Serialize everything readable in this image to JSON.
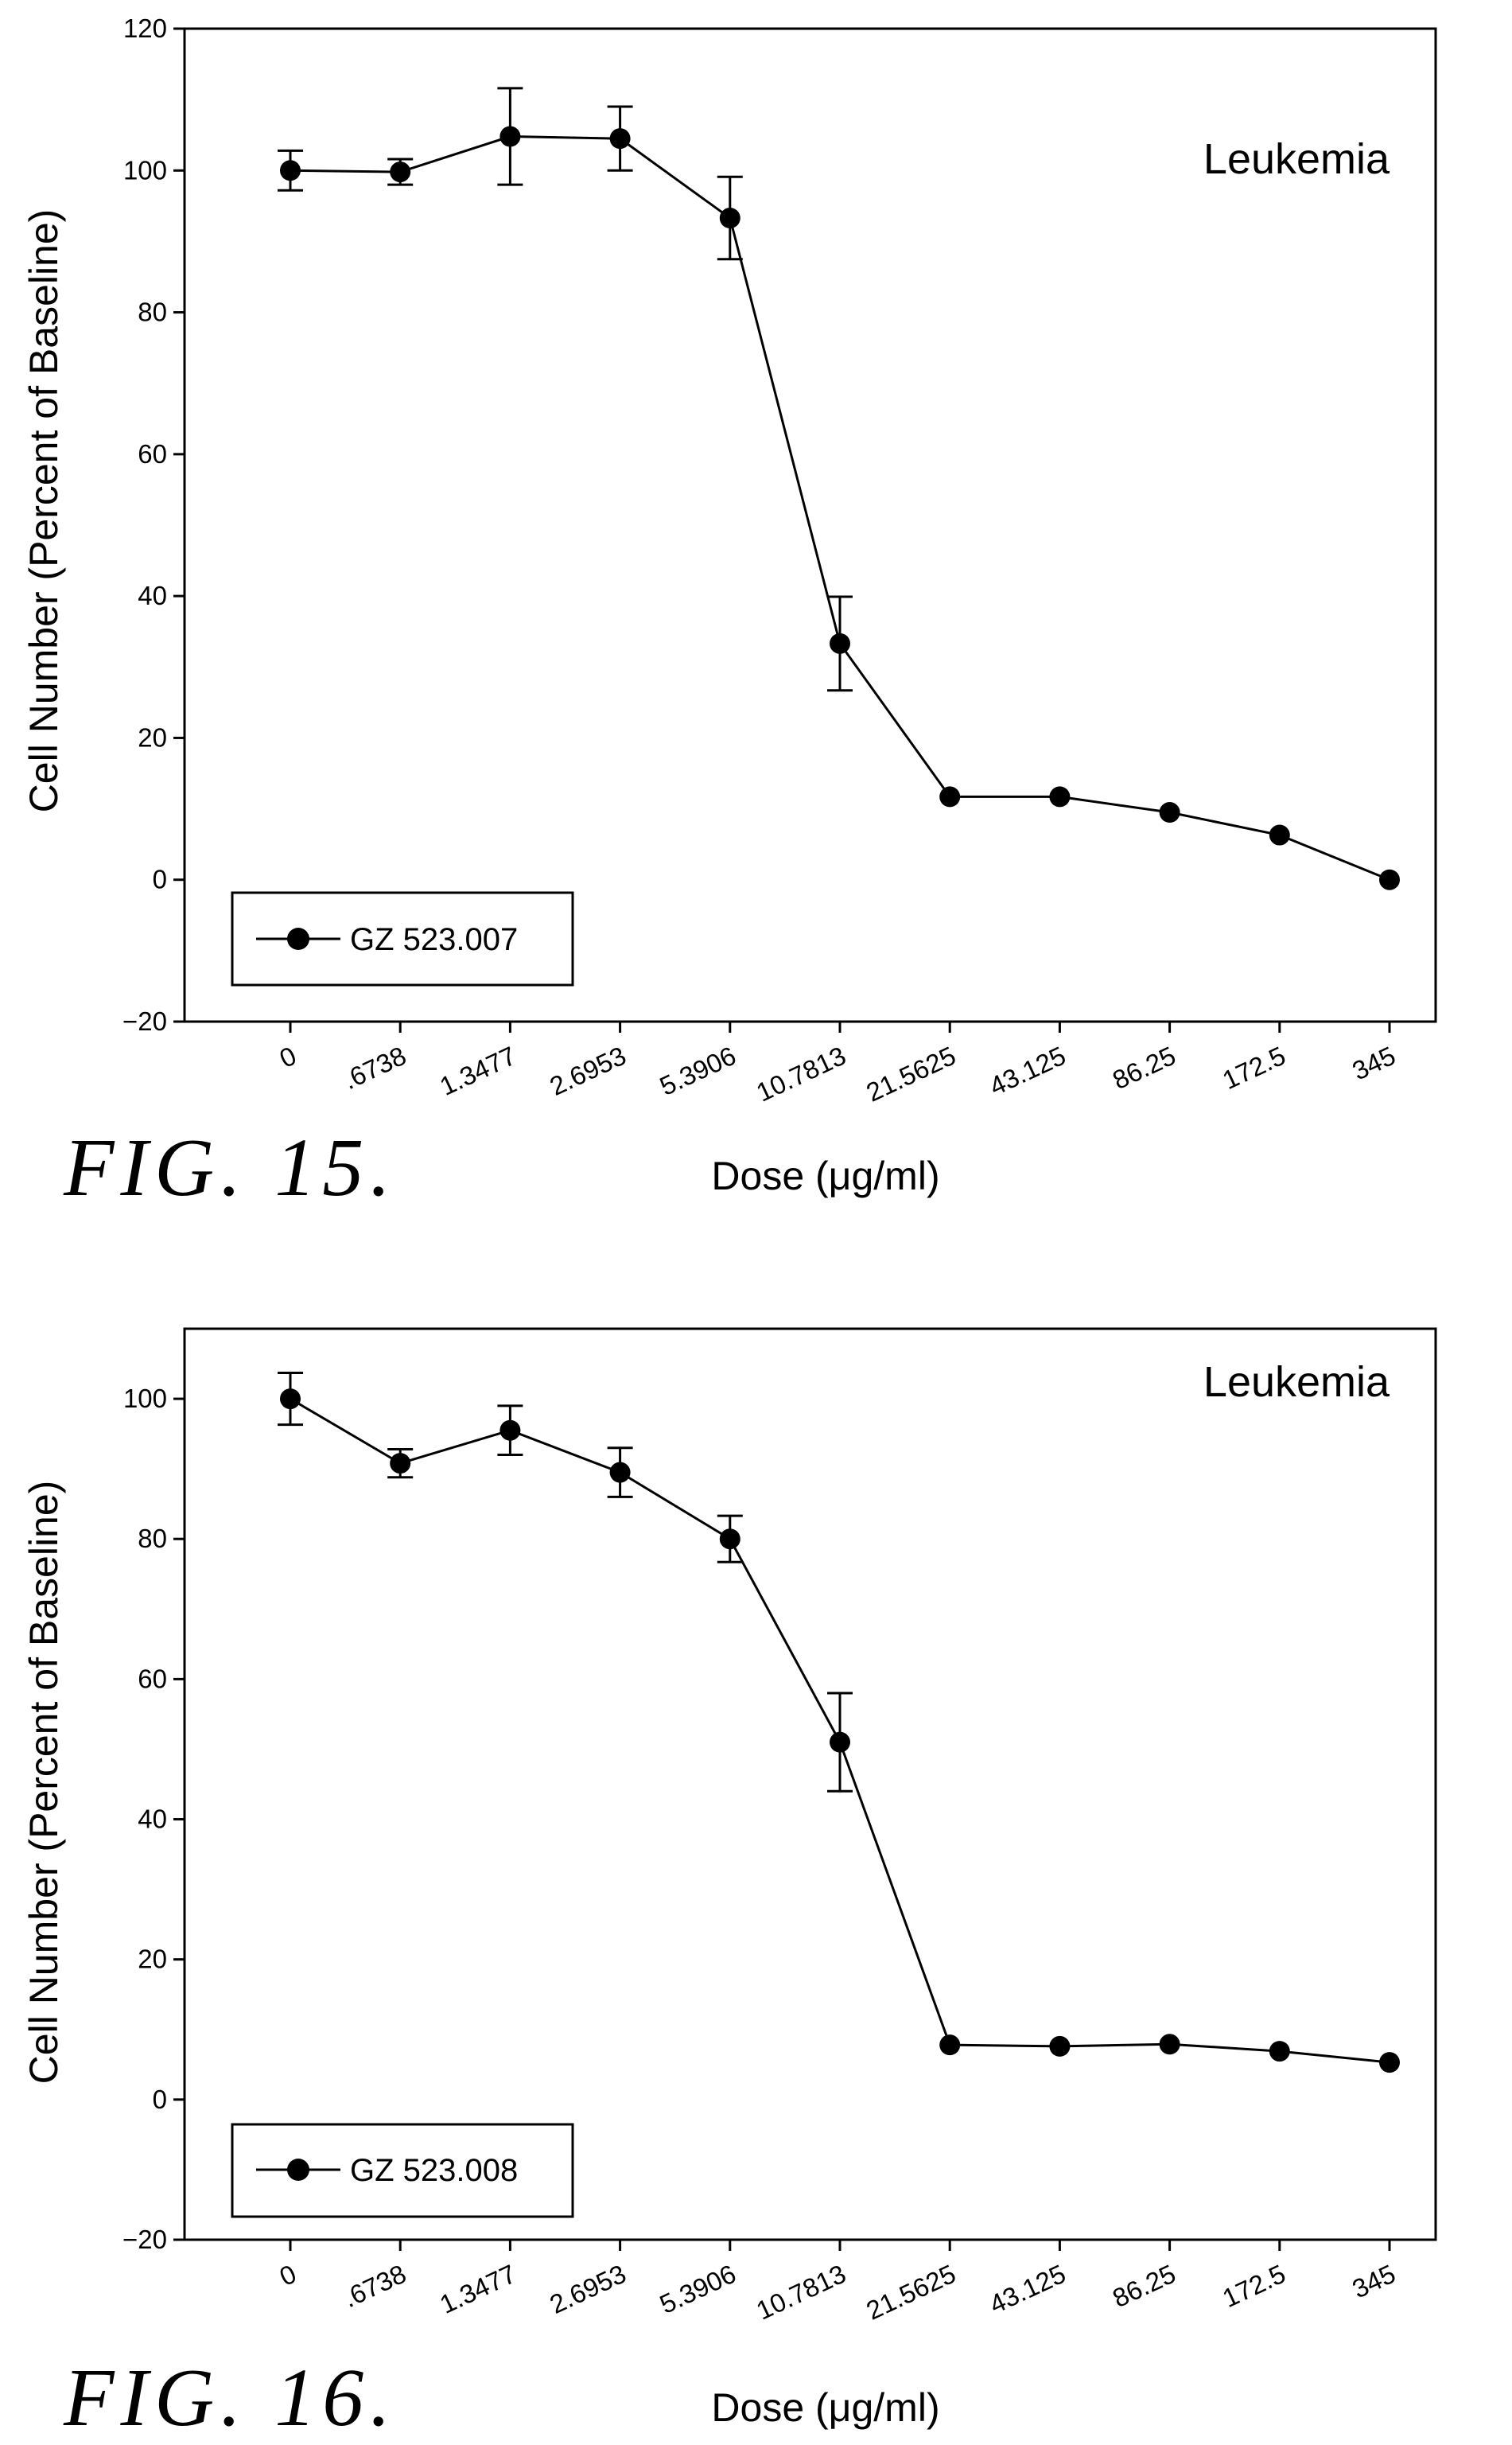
{
  "chart_data": [
    {
      "type": "line",
      "figure_label": "FIG. 15.",
      "annotation": "Leukemia",
      "xlabel": "Dose (μg/ml)",
      "ylabel": "Cell Number (Percent of Baseline)",
      "ylim": [
        -20,
        120
      ],
      "yticks": [
        -20,
        0,
        20,
        40,
        60,
        80,
        100,
        120
      ],
      "categories": [
        "0",
        ".6738",
        "1.3477",
        "2.6953",
        "5.3906",
        "10.7813",
        "21.5625",
        "43.125",
        "86.25",
        "172.5",
        "345"
      ],
      "series": [
        {
          "name": "GZ 523.007",
          "values": [
            100,
            99.8,
            104.8,
            104.5,
            93.3,
            33.3,
            11.7,
            11.7,
            9.5,
            6.3,
            0
          ],
          "errors": [
            2.8,
            1.8,
            6.8,
            4.5,
            5.8,
            6.6,
            0,
            0,
            0,
            0,
            0
          ]
        }
      ],
      "legend": "bottom-left",
      "grid": false
    },
    {
      "type": "line",
      "figure_label": "FIG. 16.",
      "annotation": "Leukemia",
      "xlabel": "Dose (μg/ml)",
      "ylabel": "Cell Number (Percent of Baseline)",
      "ylim": [
        -20,
        110
      ],
      "yticks": [
        -20,
        0,
        20,
        40,
        60,
        80,
        100
      ],
      "categories": [
        "0",
        ".6738",
        "1.3477",
        "2.6953",
        "5.3906",
        "10.7813",
        "21.5625",
        "43.125",
        "86.25",
        "172.5",
        "345"
      ],
      "series": [
        {
          "name": "GZ 523.008",
          "values": [
            100,
            90.8,
            95.5,
            89.5,
            80,
            51,
            7.8,
            7.6,
            7.9,
            6.9,
            5.3
          ],
          "errors": [
            3.7,
            2.0,
            3.5,
            3.5,
            3.3,
            7.0,
            0,
            0,
            0,
            0,
            0
          ]
        }
      ],
      "legend": "bottom-left",
      "grid": false
    }
  ]
}
